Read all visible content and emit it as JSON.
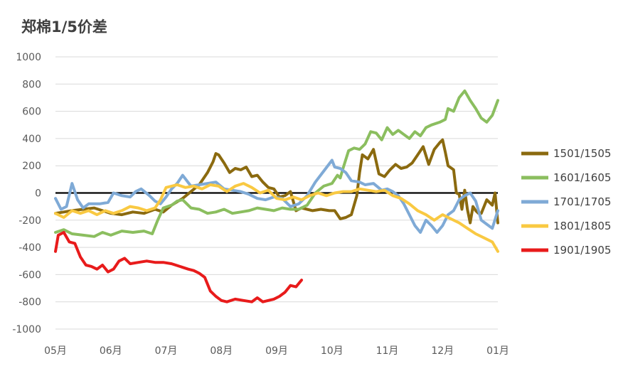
{
  "chart_data": {
    "type": "line",
    "title": "郑棉1/5价差",
    "xlabel": "",
    "ylabel": "",
    "ylim": [
      -1000,
      1000
    ],
    "y_ticks": [
      1000,
      800,
      600,
      400,
      200,
      0,
      -200,
      -400,
      -600,
      -800,
      -1000
    ],
    "x_ticks": [
      "05月",
      "06月",
      "07月",
      "08月",
      "09月",
      "10月",
      "11月",
      "12月",
      "01月"
    ],
    "xlim": [
      0,
      8
    ],
    "grid": true,
    "legend": "right",
    "series": [
      {
        "name": "1501/1505",
        "color": "#8B6A0F",
        "points": [
          [
            0.0,
            -150
          ],
          [
            0.15,
            -140
          ],
          [
            0.3,
            -130
          ],
          [
            0.5,
            -120
          ],
          [
            0.7,
            -110
          ],
          [
            0.85,
            -130
          ],
          [
            1.0,
            -150
          ],
          [
            1.2,
            -160
          ],
          [
            1.4,
            -140
          ],
          [
            1.6,
            -150
          ],
          [
            1.8,
            -120
          ],
          [
            1.95,
            -140
          ],
          [
            2.1,
            -90
          ],
          [
            2.3,
            -40
          ],
          [
            2.45,
            10
          ],
          [
            2.6,
            60
          ],
          [
            2.75,
            150
          ],
          [
            2.85,
            230
          ],
          [
            2.9,
            290
          ],
          [
            2.95,
            280
          ],
          [
            3.05,
            220
          ],
          [
            3.15,
            150
          ],
          [
            3.25,
            180
          ],
          [
            3.35,
            170
          ],
          [
            3.45,
            190
          ],
          [
            3.55,
            120
          ],
          [
            3.65,
            130
          ],
          [
            3.75,
            80
          ],
          [
            3.85,
            40
          ],
          [
            3.95,
            30
          ],
          [
            4.05,
            -30
          ],
          [
            4.15,
            -20
          ],
          [
            4.25,
            10
          ],
          [
            4.35,
            -130
          ],
          [
            4.45,
            -110
          ],
          [
            4.55,
            -120
          ],
          [
            4.65,
            -130
          ],
          [
            4.8,
            -120
          ],
          [
            4.95,
            -130
          ],
          [
            5.05,
            -130
          ],
          [
            5.15,
            -190
          ],
          [
            5.25,
            -180
          ],
          [
            5.35,
            -160
          ],
          [
            5.45,
            -20
          ],
          [
            5.5,
            150
          ],
          [
            5.55,
            280
          ],
          [
            5.65,
            250
          ],
          [
            5.75,
            320
          ],
          [
            5.85,
            140
          ],
          [
            5.95,
            120
          ],
          [
            6.05,
            170
          ],
          [
            6.15,
            210
          ],
          [
            6.25,
            180
          ],
          [
            6.35,
            190
          ],
          [
            6.45,
            220
          ],
          [
            6.55,
            280
          ],
          [
            6.65,
            340
          ],
          [
            6.75,
            210
          ],
          [
            6.85,
            320
          ],
          [
            6.95,
            370
          ],
          [
            7.0,
            390
          ],
          [
            7.05,
            300
          ],
          [
            7.1,
            200
          ],
          [
            7.2,
            170
          ],
          [
            7.25,
            0
          ],
          [
            7.3,
            -10
          ],
          [
            7.35,
            -120
          ],
          [
            7.4,
            20
          ],
          [
            7.45,
            -120
          ],
          [
            7.5,
            -220
          ],
          [
            7.55,
            -100
          ],
          [
            7.6,
            -130
          ],
          [
            7.65,
            -150
          ],
          [
            7.7,
            -150
          ],
          [
            7.8,
            -50
          ],
          [
            7.9,
            -90
          ],
          [
            7.95,
            0
          ],
          [
            8.0,
            -220
          ]
        ]
      },
      {
        "name": "1601/1605",
        "color": "#8BBE5F",
        "points": [
          [
            0.0,
            -290
          ],
          [
            0.15,
            -270
          ],
          [
            0.3,
            -300
          ],
          [
            0.5,
            -310
          ],
          [
            0.7,
            -320
          ],
          [
            0.85,
            -290
          ],
          [
            1.0,
            -310
          ],
          [
            1.2,
            -280
          ],
          [
            1.4,
            -290
          ],
          [
            1.6,
            -280
          ],
          [
            1.75,
            -300
          ],
          [
            1.85,
            -200
          ],
          [
            1.95,
            -110
          ],
          [
            2.1,
            -90
          ],
          [
            2.2,
            -60
          ],
          [
            2.3,
            -50
          ],
          [
            2.45,
            -110
          ],
          [
            2.6,
            -120
          ],
          [
            2.75,
            -150
          ],
          [
            2.9,
            -140
          ],
          [
            3.05,
            -120
          ],
          [
            3.2,
            -150
          ],
          [
            3.35,
            -140
          ],
          [
            3.5,
            -130
          ],
          [
            3.65,
            -110
          ],
          [
            3.8,
            -120
          ],
          [
            3.95,
            -130
          ],
          [
            4.1,
            -110
          ],
          [
            4.25,
            -120
          ],
          [
            4.4,
            -120
          ],
          [
            4.55,
            -90
          ],
          [
            4.7,
            0
          ],
          [
            4.85,
            50
          ],
          [
            5.0,
            70
          ],
          [
            5.1,
            130
          ],
          [
            5.15,
            110
          ],
          [
            5.2,
            180
          ],
          [
            5.3,
            310
          ],
          [
            5.4,
            330
          ],
          [
            5.5,
            320
          ],
          [
            5.6,
            360
          ],
          [
            5.7,
            450
          ],
          [
            5.8,
            440
          ],
          [
            5.9,
            390
          ],
          [
            6.0,
            480
          ],
          [
            6.1,
            430
          ],
          [
            6.2,
            460
          ],
          [
            6.3,
            430
          ],
          [
            6.4,
            400
          ],
          [
            6.5,
            450
          ],
          [
            6.6,
            420
          ],
          [
            6.7,
            480
          ],
          [
            6.8,
            500
          ],
          [
            6.95,
            520
          ],
          [
            7.05,
            540
          ],
          [
            7.1,
            620
          ],
          [
            7.2,
            600
          ],
          [
            7.3,
            700
          ],
          [
            7.4,
            750
          ],
          [
            7.5,
            680
          ],
          [
            7.6,
            620
          ],
          [
            7.7,
            550
          ],
          [
            7.8,
            520
          ],
          [
            7.9,
            570
          ],
          [
            8.0,
            680
          ]
        ]
      },
      {
        "name": "1701/1705",
        "color": "#7FAAD6",
        "points": [
          [
            0.0,
            -40
          ],
          [
            0.1,
            -120
          ],
          [
            0.2,
            -100
          ],
          [
            0.3,
            70
          ],
          [
            0.4,
            -50
          ],
          [
            0.5,
            -110
          ],
          [
            0.6,
            -80
          ],
          [
            0.8,
            -80
          ],
          [
            0.95,
            -70
          ],
          [
            1.05,
            0
          ],
          [
            1.2,
            -20
          ],
          [
            1.35,
            -30
          ],
          [
            1.45,
            10
          ],
          [
            1.55,
            30
          ],
          [
            1.7,
            -20
          ],
          [
            1.8,
            -60
          ],
          [
            1.9,
            -80
          ],
          [
            2.0,
            -30
          ],
          [
            2.1,
            30
          ],
          [
            2.2,
            70
          ],
          [
            2.3,
            130
          ],
          [
            2.45,
            50
          ],
          [
            2.6,
            60
          ],
          [
            2.75,
            70
          ],
          [
            2.9,
            80
          ],
          [
            3.05,
            30
          ],
          [
            3.2,
            20
          ],
          [
            3.35,
            10
          ],
          [
            3.5,
            -10
          ],
          [
            3.65,
            -40
          ],
          [
            3.8,
            -50
          ],
          [
            3.95,
            -30
          ],
          [
            4.1,
            -40
          ],
          [
            4.25,
            -100
          ],
          [
            4.4,
            -80
          ],
          [
            4.55,
            -20
          ],
          [
            4.7,
            80
          ],
          [
            4.85,
            160
          ],
          [
            5.0,
            240
          ],
          [
            5.05,
            190
          ],
          [
            5.15,
            180
          ],
          [
            5.25,
            150
          ],
          [
            5.35,
            90
          ],
          [
            5.5,
            80
          ],
          [
            5.6,
            60
          ],
          [
            5.75,
            70
          ],
          [
            5.9,
            20
          ],
          [
            6.0,
            30
          ],
          [
            6.1,
            10
          ],
          [
            6.2,
            -20
          ],
          [
            6.3,
            -80
          ],
          [
            6.4,
            -160
          ],
          [
            6.5,
            -240
          ],
          [
            6.6,
            -290
          ],
          [
            6.7,
            -200
          ],
          [
            6.8,
            -240
          ],
          [
            6.9,
            -290
          ],
          [
            7.0,
            -240
          ],
          [
            7.1,
            -160
          ],
          [
            7.2,
            -130
          ],
          [
            7.3,
            -50
          ],
          [
            7.4,
            -20
          ],
          [
            7.5,
            0
          ],
          [
            7.6,
            -60
          ],
          [
            7.7,
            -200
          ],
          [
            7.8,
            -230
          ],
          [
            7.9,
            -260
          ],
          [
            8.0,
            -130
          ]
        ]
      },
      {
        "name": "1801/1805",
        "color": "#F9C942",
        "points": [
          [
            0.0,
            -150
          ],
          [
            0.15,
            -180
          ],
          [
            0.3,
            -130
          ],
          [
            0.45,
            -150
          ],
          [
            0.6,
            -130
          ],
          [
            0.75,
            -160
          ],
          [
            0.9,
            -130
          ],
          [
            1.05,
            -150
          ],
          [
            1.2,
            -130
          ],
          [
            1.35,
            -100
          ],
          [
            1.5,
            -110
          ],
          [
            1.65,
            -130
          ],
          [
            1.8,
            -110
          ],
          [
            1.9,
            -50
          ],
          [
            2.0,
            40
          ],
          [
            2.1,
            50
          ],
          [
            2.2,
            60
          ],
          [
            2.35,
            40
          ],
          [
            2.5,
            50
          ],
          [
            2.65,
            30
          ],
          [
            2.8,
            60
          ],
          [
            2.95,
            50
          ],
          [
            3.1,
            10
          ],
          [
            3.25,
            50
          ],
          [
            3.4,
            70
          ],
          [
            3.55,
            40
          ],
          [
            3.7,
            0
          ],
          [
            3.85,
            20
          ],
          [
            4.0,
            -40
          ],
          [
            4.15,
            -50
          ],
          [
            4.3,
            -30
          ],
          [
            4.45,
            -50
          ],
          [
            4.6,
            -20
          ],
          [
            4.75,
            0
          ],
          [
            4.9,
            -20
          ],
          [
            5.05,
            0
          ],
          [
            5.2,
            10
          ],
          [
            5.35,
            10
          ],
          [
            5.5,
            30
          ],
          [
            5.65,
            20
          ],
          [
            5.8,
            10
          ],
          [
            5.95,
            20
          ],
          [
            6.1,
            -20
          ],
          [
            6.25,
            -40
          ],
          [
            6.4,
            -80
          ],
          [
            6.55,
            -130
          ],
          [
            6.7,
            -160
          ],
          [
            6.85,
            -200
          ],
          [
            7.0,
            -160
          ],
          [
            7.15,
            -190
          ],
          [
            7.3,
            -220
          ],
          [
            7.45,
            -260
          ],
          [
            7.6,
            -300
          ],
          [
            7.75,
            -330
          ],
          [
            7.9,
            -360
          ],
          [
            8.0,
            -430
          ]
        ]
      },
      {
        "name": "1901/1905",
        "color": "#E81B1B",
        "points": [
          [
            0.0,
            -430
          ],
          [
            0.05,
            -310
          ],
          [
            0.15,
            -290
          ],
          [
            0.25,
            -360
          ],
          [
            0.35,
            -370
          ],
          [
            0.45,
            -470
          ],
          [
            0.55,
            -530
          ],
          [
            0.65,
            -540
          ],
          [
            0.75,
            -560
          ],
          [
            0.85,
            -530
          ],
          [
            0.95,
            -580
          ],
          [
            1.05,
            -560
          ],
          [
            1.15,
            -500
          ],
          [
            1.25,
            -480
          ],
          [
            1.35,
            -520
          ],
          [
            1.5,
            -510
          ],
          [
            1.65,
            -500
          ],
          [
            1.8,
            -510
          ],
          [
            1.95,
            -510
          ],
          [
            2.1,
            -520
          ],
          [
            2.25,
            -540
          ],
          [
            2.4,
            -560
          ],
          [
            2.5,
            -570
          ],
          [
            2.6,
            -590
          ],
          [
            2.7,
            -620
          ],
          [
            2.8,
            -720
          ],
          [
            2.9,
            -760
          ],
          [
            3.0,
            -790
          ],
          [
            3.1,
            -800
          ],
          [
            3.25,
            -780
          ],
          [
            3.4,
            -790
          ],
          [
            3.55,
            -800
          ],
          [
            3.65,
            -770
          ],
          [
            3.75,
            -800
          ],
          [
            3.85,
            -790
          ],
          [
            3.95,
            -780
          ],
          [
            4.05,
            -760
          ],
          [
            4.15,
            -730
          ],
          [
            4.25,
            -680
          ],
          [
            4.35,
            -690
          ],
          [
            4.45,
            -640
          ]
        ]
      }
    ]
  }
}
